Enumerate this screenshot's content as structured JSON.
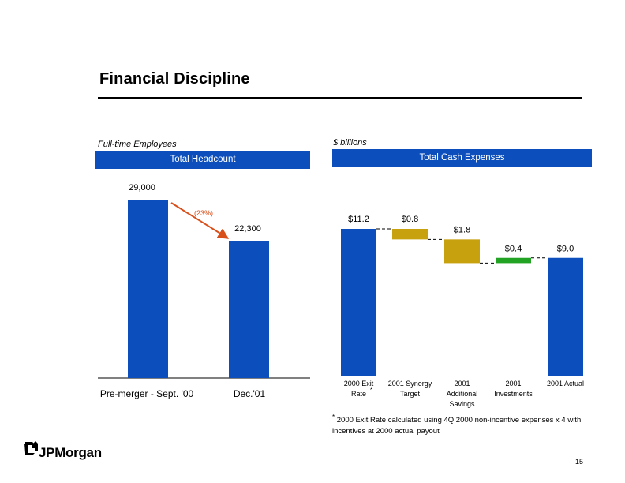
{
  "page": {
    "title": "Financial Discipline",
    "page_number": "15",
    "logo_text": "JPMorgan",
    "footnote_marker": "*",
    "footnote": "2000 Exit Rate calculated using 4Q 2000 non-incentive expenses x 4 with incentives at 2000 actual payout"
  },
  "colors": {
    "bar_blue": "#0b4ebc",
    "bar_gold": "#c8a10f",
    "bar_green": "#23a323",
    "arrow": "#d94f1a",
    "band": "#0b4ebc"
  },
  "chart_data": [
    {
      "type": "bar",
      "title": "Total Headcount",
      "subtitle": "Full-time Employees",
      "categories": [
        "Pre-merger - Sept. '00",
        "Dec.'01"
      ],
      "values": [
        29000,
        22300
      ],
      "value_labels": [
        "29,000",
        "22,300"
      ],
      "ylim": [
        0,
        30000
      ],
      "annotation": "(23%)"
    },
    {
      "type": "waterfall",
      "title": "Total Cash Expenses",
      "subtitle": "$ billions",
      "categories": [
        "2000 Exit Rate",
        "2001 Synergy Target",
        "2001 Additional Savings",
        "2001 Investments",
        "2001 Actual"
      ],
      "category_lines": [
        [
          "2000 Exit",
          "Rate"
        ],
        [
          "2001 Synergy",
          "Target"
        ],
        [
          "2001",
          "Additional",
          "Savings"
        ],
        [
          "2001",
          "Investments"
        ],
        [
          "2001 Actual"
        ]
      ],
      "steps": [
        {
          "kind": "total",
          "value": 11.2,
          "label": "$11.2"
        },
        {
          "kind": "decrease",
          "value": 0.8,
          "label": "$0.8"
        },
        {
          "kind": "decrease",
          "value": 1.8,
          "label": "$1.8"
        },
        {
          "kind": "increase",
          "value": 0.4,
          "label": "$0.4"
        },
        {
          "kind": "total",
          "value": 9.0,
          "label": "$9.0"
        }
      ],
      "ylim": [
        0,
        11.2
      ]
    }
  ]
}
